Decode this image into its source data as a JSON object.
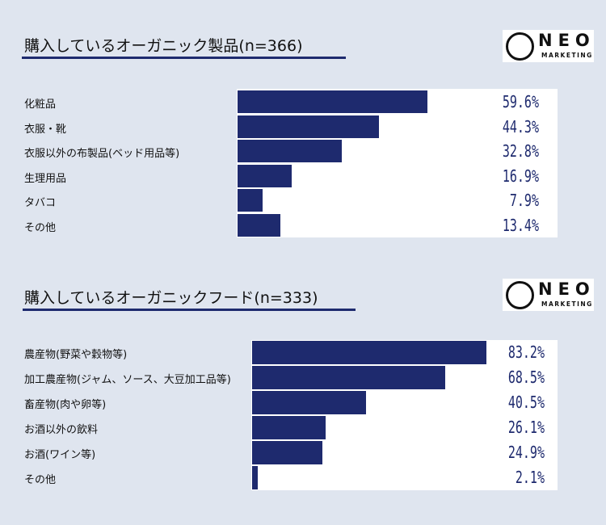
{
  "colors": {
    "bar": "#1e2a6e",
    "background": "#dfe5ef"
  },
  "logo": {
    "text": "NEO",
    "subtext": "MARKETING"
  },
  "chart_data": [
    {
      "type": "bar",
      "orientation": "horizontal",
      "title": "購入しているオーガニック製品(n=366)",
      "categories": [
        "化粧品",
        "衣服・靴",
        "衣服以外の布製品(ベッド用品等)",
        "生理用品",
        "タバコ",
        "その他"
      ],
      "values": [
        59.6,
        44.3,
        32.8,
        16.9,
        7.9,
        13.4
      ],
      "labels": [
        "59.6%",
        "44.3%",
        "32.8%",
        "16.9%",
        "7.9%",
        "13.4%"
      ],
      "unit": "%"
    },
    {
      "type": "bar",
      "orientation": "horizontal",
      "title": "購入しているオーガニックフード(n=333)",
      "categories": [
        "農産物(野菜や穀物等)",
        "加工農産物(ジャム、ソース、大豆加工品等)",
        "畜産物(肉や卵等)",
        "お酒以外の飲料",
        "お酒(ワイン等)",
        "その他"
      ],
      "values": [
        83.2,
        68.5,
        40.5,
        26.1,
        24.9,
        2.1
      ],
      "labels": [
        "83.2%",
        "68.5%",
        "40.5%",
        "26.1%",
        "24.9%",
        "2.1%"
      ],
      "unit": "%"
    }
  ]
}
